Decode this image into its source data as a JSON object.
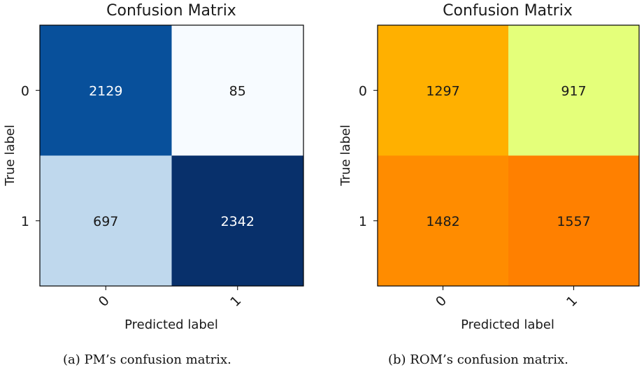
{
  "chart_data": [
    {
      "type": "heatmap",
      "title": "Confusion Matrix",
      "xlabel": "Predicted label",
      "ylabel": "True label",
      "x_ticks": [
        "0",
        "1"
      ],
      "y_ticks": [
        "0",
        "1"
      ],
      "values": [
        [
          2129,
          85
        ],
        [
          697,
          2342
        ]
      ],
      "colormap": "Blues",
      "cell_colors": [
        [
          "#08509b",
          "#f7fbff"
        ],
        [
          "#bfd8ed",
          "#08306b"
        ]
      ],
      "text_colors": [
        [
          "#ffffff",
          "#1a1a1a"
        ],
        [
          "#1a1a1a",
          "#ffffff"
        ]
      ],
      "caption": "(a) PM’s confusion matrix."
    },
    {
      "type": "heatmap",
      "title": "Confusion Matrix",
      "xlabel": "Predicted label",
      "ylabel": "True label",
      "x_ticks": [
        "0",
        "1"
      ],
      "y_ticks": [
        "0",
        "1"
      ],
      "values": [
        [
          1297,
          917
        ],
        [
          1482,
          1557
        ]
      ],
      "colormap": "Wistia",
      "cell_colors": [
        [
          "#ffb000",
          "#e4ff7a"
        ],
        [
          "#ff8c00",
          "#ff8000"
        ]
      ],
      "text_colors": [
        [
          "#1a1a1a",
          "#1a1a1a"
        ],
        [
          "#1a1a1a",
          "#1a1a1a"
        ]
      ],
      "caption": "(b) ROM’s confusion matrix."
    }
  ]
}
